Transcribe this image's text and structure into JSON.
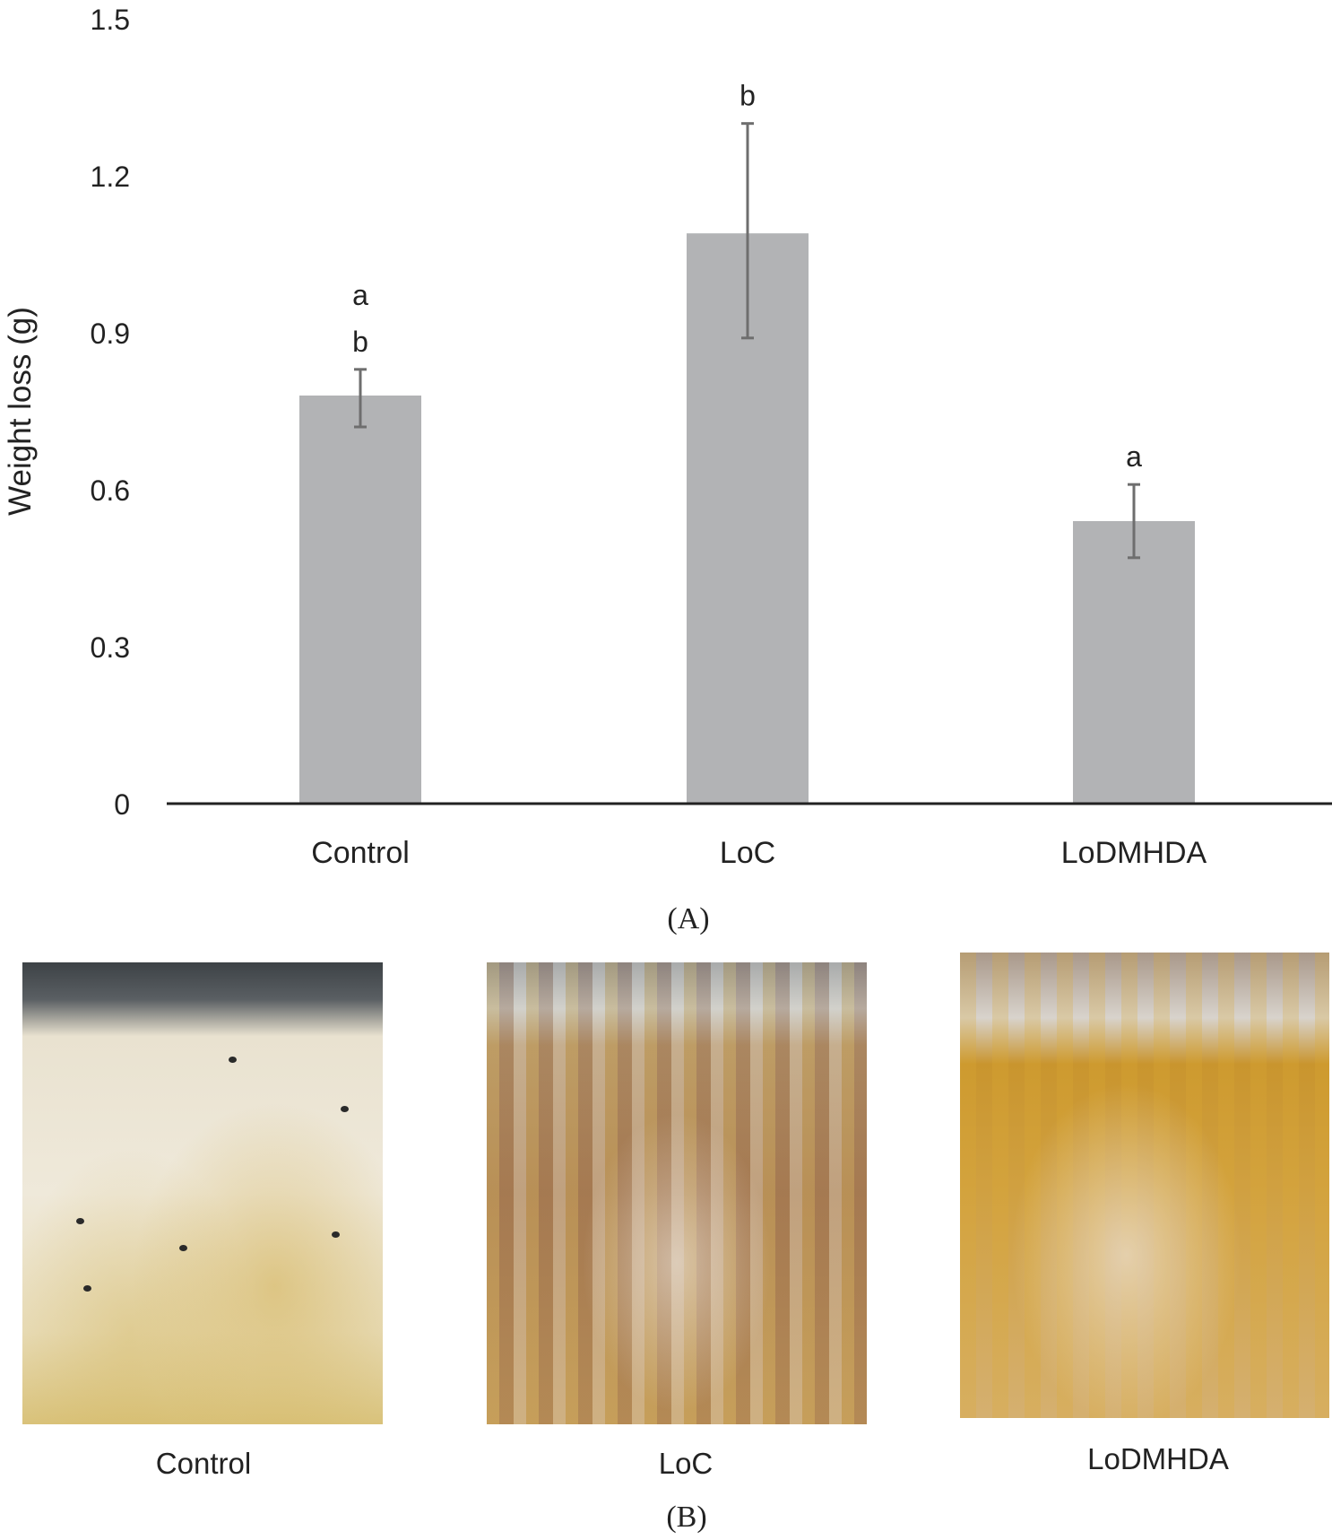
{
  "chart_data": {
    "type": "bar",
    "title": "",
    "xlabel": "",
    "ylabel": "Weight loss (g)",
    "ylim": [
      0,
      1.5
    ],
    "yticks": [
      0,
      0.3,
      0.6,
      0.9,
      1.2,
      1.5
    ],
    "ytick_labels": [
      "0",
      "0.3",
      "0.6",
      "0.9",
      "1.2",
      "1.5"
    ],
    "categories": [
      "Control",
      "LoC",
      "LoDMHDA"
    ],
    "values": [
      0.78,
      1.09,
      0.54
    ],
    "error_upper": [
      0.83,
      1.3,
      0.61
    ],
    "error_lower": [
      0.72,
      0.89,
      0.47
    ],
    "significance_letters": [
      [
        "a",
        "b"
      ],
      [
        "b"
      ],
      [
        "a"
      ]
    ],
    "bar_color": "#b2b3b5",
    "error_color": "#6e6e6e",
    "grid": false,
    "panel_label": "(A)"
  },
  "photos": {
    "panel_label": "(B)",
    "items": [
      {
        "label": "Control"
      },
      {
        "label": "LoC"
      },
      {
        "label": "LoDMHDA"
      }
    ]
  }
}
